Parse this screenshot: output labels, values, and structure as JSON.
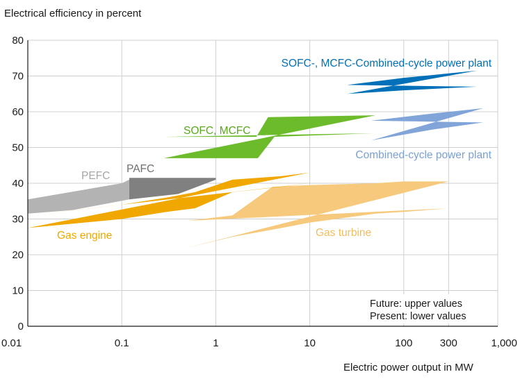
{
  "chart_data": {
    "type": "area",
    "title": "Electrical efficiency in percent",
    "xlabel": "Electric power output in MW",
    "ylabel": "Electrical efficiency in percent",
    "xscale": "log",
    "xlim": [
      0.01,
      1000
    ],
    "ylim": [
      0,
      80
    ],
    "grid": true,
    "x_ticks": [
      {
        "value": 0.01,
        "label": "0.01"
      },
      {
        "value": 0.1,
        "label": "0.1"
      },
      {
        "value": 1,
        "label": "1"
      },
      {
        "value": 10,
        "label": "10"
      },
      {
        "value": 100,
        "label": "100"
      },
      {
        "value": 300,
        "label": "300"
      },
      {
        "value": 1000,
        "label": "1,000"
      }
    ],
    "y_ticks": [
      0,
      10,
      20,
      30,
      40,
      50,
      60,
      70,
      80
    ],
    "series": [
      {
        "name": "Gas turbine",
        "label": "Gas turbine",
        "color": "#f6c97c",
        "upper": [
          [
            0.5,
            29.5
          ],
          [
            1.5,
            31
          ],
          [
            4,
            39
          ],
          [
            10,
            39.5
          ],
          [
            50,
            40
          ],
          [
            100,
            40.5
          ],
          [
            300,
            40.5
          ]
        ],
        "lower": [
          [
            0.5,
            22
          ],
          [
            1.5,
            25
          ],
          [
            4,
            27
          ],
          [
            10,
            29
          ],
          [
            50,
            31.5
          ],
          [
            100,
            32
          ],
          [
            300,
            33
          ]
        ]
      },
      {
        "name": "PEFC",
        "label": "PEFC",
        "color": "#b3b3b3",
        "upper": [
          [
            0.01,
            35.5
          ],
          [
            0.1,
            40
          ],
          [
            0.12,
            41
          ]
        ],
        "lower": [
          [
            0.12,
            35.5
          ],
          [
            0.03,
            32.5
          ],
          [
            0.01,
            31.5
          ]
        ]
      },
      {
        "name": "PAFC",
        "label": "PAFC",
        "color": "#808080",
        "upper": [
          [
            0.12,
            41.5
          ],
          [
            1,
            41.5
          ]
        ],
        "lower": [
          [
            1,
            41
          ],
          [
            0.4,
            37
          ],
          [
            0.12,
            35.5
          ]
        ]
      },
      {
        "name": "Gas engine",
        "label": "Gas engine",
        "color": "#f0a800",
        "upper": [
          [
            0.01,
            31
          ],
          [
            0.1,
            34
          ],
          [
            0.3,
            36
          ],
          [
            0.6,
            37.5
          ],
          [
            1.5,
            41
          ],
          [
            5,
            42
          ],
          [
            10,
            43
          ]
        ],
        "lower": [
          [
            0.01,
            27.5
          ],
          [
            0.1,
            30
          ],
          [
            0.3,
            32
          ],
          [
            0.6,
            33
          ],
          [
            1.5,
            37.5
          ],
          [
            5,
            39
          ],
          [
            10,
            40
          ]
        ]
      },
      {
        "name": "SOFC, MCFC",
        "label": "SOFC, MCFC",
        "color": "#6cbb2b",
        "upper": [
          [
            0.28,
            53
          ],
          [
            2.7,
            53
          ],
          [
            3.6,
            58.5
          ],
          [
            50,
            59
          ]
        ],
        "lower": [
          [
            0.28,
            47
          ],
          [
            2.8,
            47
          ],
          [
            4.2,
            53
          ],
          [
            50,
            54
          ]
        ]
      },
      {
        "name": "Combined-cycle power plant",
        "label": "Combined-cycle power plant",
        "color": "#82a5d9",
        "upper": [
          [
            45,
            57.5
          ],
          [
            200,
            59.5
          ],
          [
            700,
            61
          ]
        ],
        "lower": [
          [
            45,
            52
          ],
          [
            200,
            55
          ],
          [
            700,
            57
          ]
        ]
      },
      {
        "name": "SOFC-, MCFC-Combined-cycle power plant",
        "label": "SOFC-, MCFC-Combined-cycle power plant",
        "color": "#0070b8",
        "upper": [
          [
            25,
            67.5
          ],
          [
            100,
            69.5
          ],
          [
            600,
            71.5
          ]
        ],
        "lower": [
          [
            25,
            65
          ],
          [
            100,
            66
          ],
          [
            600,
            67
          ]
        ]
      }
    ],
    "annotations": [
      "Future: upper values",
      "Present: lower values"
    ]
  }
}
